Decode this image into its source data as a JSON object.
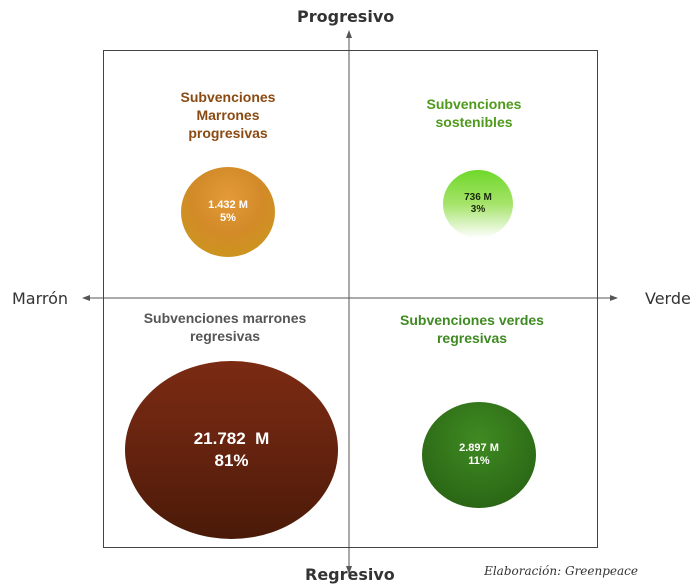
{
  "axes": {
    "top": "Progresivo",
    "bottom": "Regresivo",
    "left": "Marrón",
    "right": "Verde"
  },
  "quadrants": {
    "top_left": {
      "title_lines": [
        "Subvenciones",
        "Marrones",
        "progresivas"
      ],
      "value": "1.432 M",
      "share": "5%",
      "title_color": "#8a4a12"
    },
    "top_right": {
      "title_lines": [
        "Subvenciones",
        "sostenibles"
      ],
      "value": "736 M",
      "share": "3%",
      "title_color": "#4f9a1c"
    },
    "bottom_left": {
      "title_lines": [
        "Subvenciones marrones",
        "regresivas"
      ],
      "value": "21.782  M",
      "share": "81%",
      "title_color": "#555555"
    },
    "bottom_right": {
      "title_lines": [
        "Subvenciones verdes",
        "regresivas"
      ],
      "value": "2.897 M",
      "share": "11%",
      "title_color": "#3f8a22"
    }
  },
  "credit": "Elaboración: Greenpeace"
}
